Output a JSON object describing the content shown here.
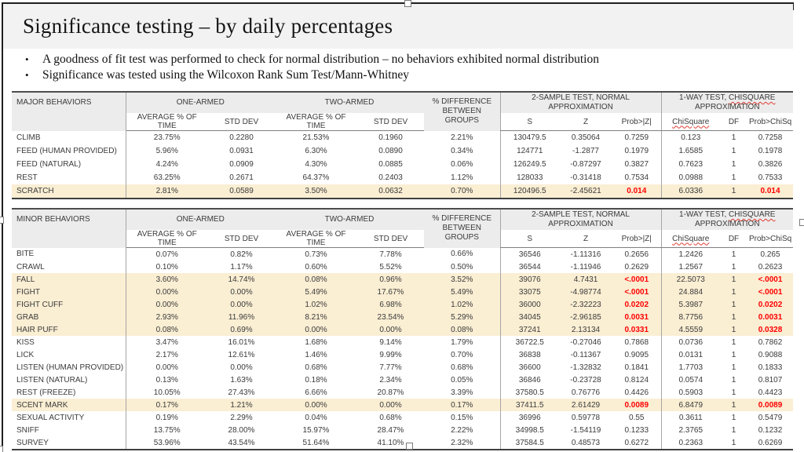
{
  "slide": {
    "title": "Significance testing – by daily percentages",
    "bullets": [
      "A goodness of fit test was performed to check for normal distribution – no behaviors exhibited normal distribution",
      "Significance was tested using the Wilcoxon Rank Sum Test/Mann-Whitney"
    ]
  },
  "columns": {
    "group_one_armed": "ONE-ARMED",
    "group_two_armed": "TWO-ARMED",
    "group_diff": "% DIFFERENCE BETWEEN GROUPS",
    "group_2sample": "2-SAMPLE TEST, NORMAL APPROXIMATION",
    "group_1way_prefix": "1-WAY TEST, ",
    "group_1way_chisquare": "CHISQUARE",
    "group_1way_suffix": " APPROXIMATION",
    "sub_avg": "AVERAGE % OF TIME",
    "sub_std": "STD DEV",
    "sub_s": "S",
    "sub_z": "Z",
    "sub_probz": "Prob>|Z|",
    "sub_chisquare": "ChiSquare",
    "sub_df": "DF",
    "sub_probchisq": "Prob>ChiSq"
  },
  "colors": {
    "highlight_row": "#faeed3",
    "significant_value": "#ff0000",
    "header_bg": "#ececec",
    "title_bg": "#f2f2f2"
  },
  "tables": [
    {
      "label": "MAJOR BEHAVIORS",
      "rows": [
        {
          "cells": [
            "CLIMB",
            "23.75%",
            "0.2280",
            "21.53%",
            "0.1960",
            "2.21%",
            "130479.5",
            "0.35064",
            "0.7259",
            "0.123",
            "1",
            "0.7258"
          ],
          "highlight": false,
          "red": []
        },
        {
          "cells": [
            "FEED (HUMAN PROVIDED)",
            "5.96%",
            "0.0931",
            "6.30%",
            "0.0890",
            "0.34%",
            "124771",
            "-1.2877",
            "0.1979",
            "1.6585",
            "1",
            "0.1978"
          ],
          "highlight": false,
          "red": []
        },
        {
          "cells": [
            "FEED (NATURAL)",
            "4.24%",
            "0.0909",
            "4.30%",
            "0.0885",
            "0.06%",
            "126249.5",
            "-0.87297",
            "0.3827",
            "0.7623",
            "1",
            "0.3826"
          ],
          "highlight": false,
          "red": []
        },
        {
          "cells": [
            "REST",
            "63.25%",
            "0.2671",
            "64.37%",
            "0.2403",
            "1.12%",
            "128033",
            "-0.31418",
            "0.7534",
            "0.0988",
            "1",
            "0.7533"
          ],
          "highlight": false,
          "red": []
        },
        {
          "cells": [
            "SCRATCH",
            "2.81%",
            "0.0589",
            "3.50%",
            "0.0632",
            "0.70%",
            "120496.5",
            "-2.45621",
            "0.014",
            "6.0336",
            "1",
            "0.014"
          ],
          "highlight": true,
          "red": [
            8,
            11
          ]
        }
      ]
    },
    {
      "label": "MINOR BEHAVIORS",
      "rows": [
        {
          "cells": [
            "BITE",
            "0.07%",
            "0.82%",
            "0.73%",
            "7.78%",
            "0.66%",
            "36546",
            "-1.11316",
            "0.2656",
            "1.2426",
            "1",
            "0.265"
          ],
          "highlight": false,
          "red": []
        },
        {
          "cells": [
            "CRAWL",
            "0.10%",
            "1.17%",
            "0.60%",
            "5.52%",
            "0.50%",
            "36544",
            "-1.11946",
            "0.2629",
            "1.2567",
            "1",
            "0.2623"
          ],
          "highlight": false,
          "red": []
        },
        {
          "cells": [
            "FALL",
            "3.60%",
            "14.74%",
            "0.08%",
            "0.96%",
            "3.52%",
            "39076",
            "4.7431",
            "<.0001",
            "22.5073",
            "1",
            "<.0001"
          ],
          "highlight": true,
          "red": [
            8,
            11
          ]
        },
        {
          "cells": [
            "FIGHT",
            "0.00%",
            "0.00%",
            "5.49%",
            "17.67%",
            "5.49%",
            "33075",
            "-4.98774",
            "<.0001",
            "24.884",
            "1",
            "<.0001"
          ],
          "highlight": true,
          "red": [
            8,
            11
          ]
        },
        {
          "cells": [
            "FIGHT CUFF",
            "0.00%",
            "0.00%",
            "1.02%",
            "6.98%",
            "1.02%",
            "36000",
            "-2.32223",
            "0.0202",
            "5.3987",
            "1",
            "0.0202"
          ],
          "highlight": true,
          "red": [
            8,
            11
          ]
        },
        {
          "cells": [
            "GRAB",
            "2.93%",
            "11.96%",
            "8.21%",
            "23.54%",
            "5.29%",
            "34045",
            "-2.96185",
            "0.0031",
            "8.7756",
            "1",
            "0.0031"
          ],
          "highlight": true,
          "red": [
            8,
            11
          ]
        },
        {
          "cells": [
            "HAIR PUFF",
            "0.08%",
            "0.69%",
            "0.00%",
            "0.00%",
            "0.08%",
            "37241",
            "2.13134",
            "0.0331",
            "4.5559",
            "1",
            "0.0328"
          ],
          "highlight": true,
          "red": [
            8,
            11
          ]
        },
        {
          "cells": [
            "KISS",
            "3.47%",
            "16.01%",
            "1.68%",
            "9.14%",
            "1.79%",
            "36722.5",
            "-0.27046",
            "0.7868",
            "0.0736",
            "1",
            "0.7862"
          ],
          "highlight": false,
          "red": []
        },
        {
          "cells": [
            "LICK",
            "2.17%",
            "12.61%",
            "1.46%",
            "9.99%",
            "0.70%",
            "36838",
            "-0.11367",
            "0.9095",
            "0.0131",
            "1",
            "0.9088"
          ],
          "highlight": false,
          "red": []
        },
        {
          "cells": [
            "LISTEN (HUMAN PROVIDED)",
            "0.00%",
            "0.00%",
            "0.68%",
            "7.77%",
            "0.68%",
            "36600",
            "-1.32832",
            "0.1841",
            "1.7703",
            "1",
            "0.1833"
          ],
          "highlight": false,
          "red": []
        },
        {
          "cells": [
            "LISTEN (NATURAL)",
            "0.13%",
            "1.63%",
            "0.18%",
            "2.34%",
            "0.05%",
            "36846",
            "-0.23728",
            "0.8124",
            "0.0574",
            "1",
            "0.8107"
          ],
          "highlight": false,
          "red": []
        },
        {
          "cells": [
            "REST (FREEZE)",
            "10.05%",
            "27.43%",
            "6.66%",
            "20.87%",
            "3.39%",
            "37580.5",
            "0.76776",
            "0.4426",
            "0.5903",
            "1",
            "0.4423"
          ],
          "highlight": false,
          "red": []
        },
        {
          "cells": [
            "SCENT MARK",
            "0.17%",
            "1.21%",
            "0.00%",
            "0.00%",
            "0.17%",
            "37411.5",
            "2.61429",
            "0.0089",
            "6.8479",
            "1",
            "0.0089"
          ],
          "highlight": true,
          "red": [
            8,
            11
          ]
        },
        {
          "cells": [
            "SEXUAL ACTIVITY",
            "0.19%",
            "2.29%",
            "0.04%",
            "0.68%",
            "0.15%",
            "36996",
            "0.59778",
            "0.55",
            "0.3611",
            "1",
            "0.5479"
          ],
          "highlight": false,
          "red": []
        },
        {
          "cells": [
            "SNIFF",
            "13.75%",
            "28.00%",
            "15.97%",
            "28.47%",
            "2.22%",
            "34998.5",
            "-1.54119",
            "0.1233",
            "2.3765",
            "1",
            "0.1232"
          ],
          "highlight": false,
          "red": []
        },
        {
          "cells": [
            "SURVEY",
            "53.96%",
            "43.54%",
            "51.64%",
            "41.10%",
            "2.32%",
            "37584.5",
            "0.48573",
            "0.6272",
            "0.2363",
            "1",
            "0.6269"
          ],
          "highlight": false,
          "red": []
        }
      ]
    }
  ]
}
